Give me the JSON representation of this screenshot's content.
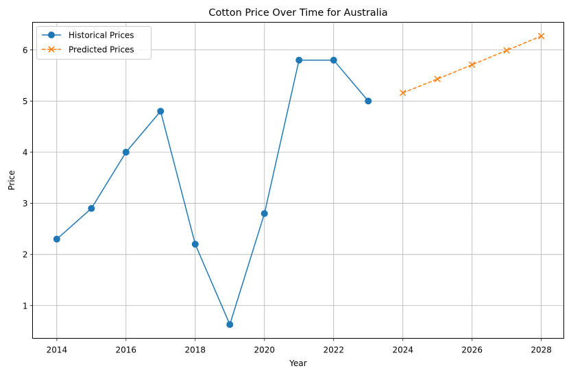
{
  "chart_data": {
    "type": "line",
    "title": "Cotton Price Over Time for Australia",
    "xlabel": "Year",
    "ylabel": "Price",
    "xlim": [
      2013.3,
      2028.65
    ],
    "ylim": [
      0.36,
      6.54
    ],
    "x_ticks": [
      2014,
      2016,
      2018,
      2020,
      2022,
      2024,
      2026,
      2028
    ],
    "y_ticks": [
      1,
      2,
      3,
      4,
      5,
      6
    ],
    "grid": true,
    "legend_position": "top-left",
    "series": [
      {
        "name": "Historical Prices",
        "color": "#1f77b4",
        "marker": "circle",
        "linestyle": "solid",
        "x": [
          2014,
          2015,
          2016,
          2017,
          2018,
          2019,
          2020,
          2021,
          2022,
          2023
        ],
        "y": [
          2.3,
          2.9,
          4.0,
          4.8,
          2.2,
          0.63,
          2.8,
          5.8,
          5.8,
          5.0
        ]
      },
      {
        "name": "Predicted Prices",
        "color": "#ff7f0e",
        "marker": "x",
        "linestyle": "dashed",
        "x": [
          2024,
          2025,
          2026,
          2027,
          2028
        ],
        "y": [
          5.16,
          5.43,
          5.71,
          5.99,
          6.27
        ]
      }
    ]
  }
}
